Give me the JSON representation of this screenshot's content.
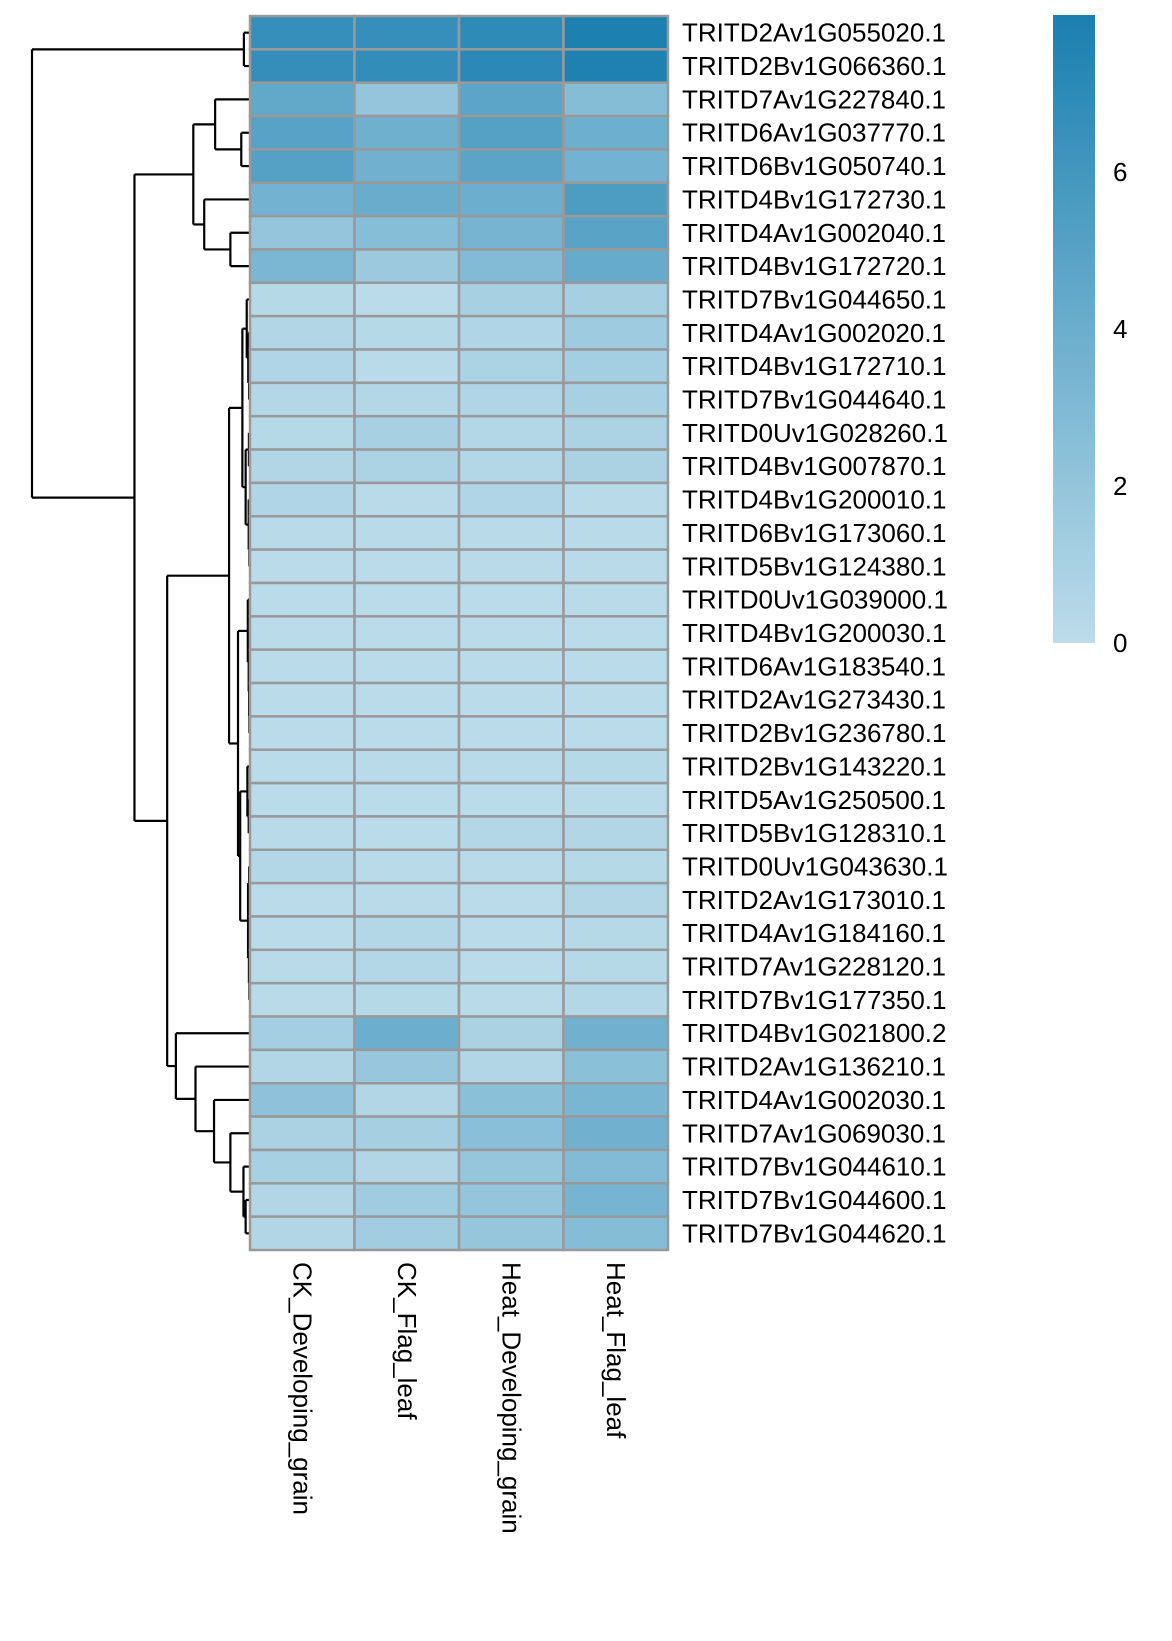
{
  "chart_data": {
    "type": "heatmap",
    "title": "",
    "columns": [
      "CK_Developing_grain",
      "CK_Flag_leaf",
      "Heat_Developing_grain",
      "Heat_Flag_leaf"
    ],
    "rows": [
      "TRITD2Av1G055020.1",
      "TRITD2Bv1G066360.1",
      "TRITD7Av1G227840.1",
      "TRITD6Av1G037770.1",
      "TRITD6Bv1G050740.1",
      "TRITD4Bv1G172730.1",
      "TRITD4Av1G002040.1",
      "TRITD4Bv1G172720.1",
      "TRITD7Bv1G044650.1",
      "TRITD4Av1G002020.1",
      "TRITD4Bv1G172710.1",
      "TRITD7Bv1G044640.1",
      "TRITD0Uv1G028260.1",
      "TRITD4Bv1G007870.1",
      "TRITD4Bv1G200010.1",
      "TRITD6Bv1G173060.1",
      "TRITD5Bv1G124380.1",
      "TRITD0Uv1G039000.1",
      "TRITD4Bv1G200030.1",
      "TRITD6Av1G183540.1",
      "TRITD2Av1G273430.1",
      "TRITD2Bv1G236780.1",
      "TRITD2Bv1G143220.1",
      "TRITD5Av1G250500.1",
      "TRITD5Bv1G128310.1",
      "TRITD0Uv1G043630.1",
      "TRITD2Av1G173010.1",
      "TRITD4Av1G184160.1",
      "TRITD7Av1G228120.1",
      "TRITD7Bv1G177350.1",
      "TRITD4Bv1G021800.2",
      "TRITD2Av1G136210.1",
      "TRITD4Av1G002030.1",
      "TRITD7Av1G069030.1",
      "TRITD7Bv1G044610.1",
      "TRITD7Bv1G044600.1",
      "TRITD7Bv1G044620.1"
    ],
    "values": [
      [
        6.6,
        6.6,
        7.0,
        7.9
      ],
      [
        6.7,
        6.8,
        7.1,
        7.8
      ],
      [
        4.5,
        2.0,
        4.7,
        2.7
      ],
      [
        5.0,
        3.8,
        5.1,
        3.9
      ],
      [
        5.1,
        3.7,
        4.8,
        3.6
      ],
      [
        3.6,
        4.1,
        4.0,
        5.5
      ],
      [
        2.0,
        2.6,
        3.4,
        4.9
      ],
      [
        3.2,
        1.6,
        2.8,
        4.2
      ],
      [
        0.3,
        0.1,
        1.0,
        1.1
      ],
      [
        0.5,
        0.3,
        0.6,
        1.5
      ],
      [
        0.6,
        0.2,
        0.8,
        1.2
      ],
      [
        0.4,
        0.4,
        0.6,
        1.0
      ],
      [
        0.3,
        1.0,
        0.4,
        0.8
      ],
      [
        0.5,
        0.8,
        0.4,
        0.9
      ],
      [
        0.6,
        0.2,
        0.6,
        0.2
      ],
      [
        0.2,
        0.2,
        0.2,
        0.2
      ],
      [
        0.1,
        0.1,
        0.2,
        0.2
      ],
      [
        0.1,
        0.1,
        0.1,
        0.2
      ],
      [
        0.1,
        0.1,
        0.1,
        0.1
      ],
      [
        0.1,
        0.1,
        0.1,
        0.1
      ],
      [
        0.1,
        0.1,
        0.1,
        0.1
      ],
      [
        0.1,
        0.1,
        0.1,
        0.1
      ],
      [
        0.1,
        0.2,
        0.2,
        0.3
      ],
      [
        0.1,
        0.1,
        0.1,
        0.2
      ],
      [
        0.2,
        0.1,
        0.4,
        0.5
      ],
      [
        0.4,
        0.2,
        0.2,
        0.3
      ],
      [
        0.1,
        0.2,
        0.1,
        0.5
      ],
      [
        0.1,
        0.4,
        0.1,
        0.3
      ],
      [
        0.2,
        0.4,
        0.1,
        0.3
      ],
      [
        0.2,
        0.3,
        0.2,
        0.4
      ],
      [
        1.2,
        4.0,
        0.9,
        3.7
      ],
      [
        0.5,
        1.8,
        0.5,
        2.4
      ],
      [
        2.2,
        0.5,
        2.4,
        3.3
      ],
      [
        0.9,
        1.1,
        2.5,
        3.7
      ],
      [
        1.0,
        0.5,
        1.9,
        2.8
      ],
      [
        0.5,
        1.4,
        2.0,
        3.4
      ],
      [
        0.5,
        1.3,
        1.9,
        2.7
      ]
    ],
    "color_scale": {
      "min": 0,
      "max": 8,
      "low_color": "#bcdcea",
      "high_color": "#1a7fb0"
    },
    "legend": {
      "position": "right",
      "ticks": [
        0,
        2,
        4,
        6
      ]
    },
    "row_dendrogram": {
      "max_height": 10,
      "tree": {
        "h": 10,
        "c": [
          {
            "h": 0.28,
            "c": [
              0,
              1
            ]
          },
          {
            "h": 5.3,
            "c": [
              {
                "h": 2.6,
                "c": [
                  {
                    "h": 1.6,
                    "c": [
                      2,
                      {
                        "h": 0.4,
                        "c": [
                          3,
                          4
                        ]
                      }
                    ]
                  },
                  {
                    "h": 2.1,
                    "c": [
                      5,
                      {
                        "h": 0.9,
                        "c": [
                          6,
                          7
                        ]
                      }
                    ]
                  }
                ]
              },
              {
                "h": 3.8,
                "c": [
                  {
                    "h": 0.96,
                    "c": [
                      {
                        "h": 0.35,
                        "c": [
                          {
                            "h": 0.15,
                            "c": [
                              8,
                              {
                                "h": 0.08,
                                "c": [
                                  9,
                                  {
                                    "h": 0.04,
                                    "c": [
                                      10,
                                      11
                                    ]
                                  }
                                ]
                              }
                            ]
                          },
                          {
                            "h": 0.2,
                            "c": [
                              {
                                "h": 0.05,
                                "c": [
                                  12,
                                  13
                                ]
                              },
                              {
                                "h": 0.06,
                                "c": [
                                  14,
                                  {
                                    "h": 0.03,
                                    "c": [
                                      15,
                                      16
                                    ]
                                  }
                                ]
                              }
                            ]
                          }
                        ]
                      },
                      {
                        "h": 0.55,
                        "c": [
                          {
                            "h": 0.1,
                            "c": [
                              17,
                              {
                                "h": 0.06,
                                "c": [
                                  18,
                                  {
                                    "h": 0.04,
                                    "c": [
                                      19,
                                      {
                                        "h": 0.03,
                                        "c": [
                                          20,
                                          21
                                        ]
                                      }
                                    ]
                                  }
                                ]
                              }
                            ]
                          },
                          {
                            "h": 0.45,
                            "c": [
                              {
                                "h": 0.12,
                                "c": [
                                  22,
                                  {
                                    "h": 0.06,
                                    "c": [
                                      23,
                                      24
                                    ]
                                  }
                                ]
                              },
                              {
                                "h": 0.09,
                                "c": [
                                  {
                                    "h": 0.04,
                                    "c": [
                                      25,
                                      26
                                    ]
                                  },
                                  {
                                    "h": 0.05,
                                    "c": [
                                      27,
                                      {
                                        "h": 0.03,
                                        "c": [
                                          28,
                                          29
                                        ]
                                      }
                                    ]
                                  }
                                ]
                              }
                            ]
                          }
                        ]
                      }
                    ]
                  },
                  {
                    "h": 3.4,
                    "c": [
                      30,
                      {
                        "h": 2.5,
                        "c": [
                          31,
                          {
                            "h": 1.65,
                            "c": [
                              32,
                              {
                                "h": 1.05,
                                "c": [
                                  {
                                    "h": 0.9,
                                    "c": [
                                      33,
                                      {
                                        "h": 0.3,
                                        "c": [
                                          34,
                                          {
                                            "h": 0.2,
                                            "c": [
                                              35,
                                              36
                                            ]
                                          }
                                        ]
                                      }
                                    ]
                                  }
                                ]
                              }
                            ]
                          }
                        ]
                      }
                    ]
                  }
                ]
              }
            ]
          }
        ]
      }
    }
  }
}
